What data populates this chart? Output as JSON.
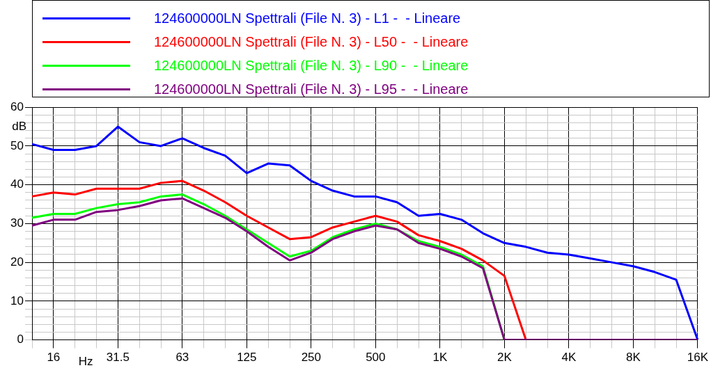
{
  "chart_data": {
    "type": "line",
    "xlabel": "Hz",
    "ylabel": "dB",
    "categories": [
      null,
      "16",
      null,
      null,
      "31.5",
      null,
      null,
      "63",
      null,
      null,
      "125",
      null,
      null,
      "250",
      null,
      null,
      "500",
      null,
      null,
      "1K",
      null,
      null,
      "2K",
      null,
      null,
      "4K",
      null,
      null,
      "8K",
      null,
      null,
      "16K"
    ],
    "series": [
      {
        "name": "124600000LN Spettrali (File N. 3) - L1 -  - Lineare",
        "color": "#0000ff",
        "values": [
          50.5,
          49,
          49,
          50,
          55,
          51,
          50,
          52,
          49.5,
          47.5,
          43,
          45.5,
          45,
          41,
          38.5,
          37,
          37,
          35.5,
          32,
          32.5,
          31,
          27.5,
          25,
          24,
          22.5,
          22,
          21,
          20,
          19,
          17.5,
          15.5,
          0
        ]
      },
      {
        "name": "124600000LN Spettrali (File N. 3) - L50 -  - Lineare",
        "color": "#ff0000",
        "values": [
          37,
          38,
          37.5,
          39,
          39,
          39,
          40.5,
          41,
          38.5,
          35.5,
          32,
          29,
          26,
          26.5,
          29,
          30.5,
          32,
          30.5,
          27,
          25.5,
          23.5,
          20.5,
          16.5,
          0,
          null,
          null,
          null,
          null,
          null,
          null,
          null,
          null
        ]
      },
      {
        "name": "124600000LN Spettrali (File N. 3) - L90 -  - Lineare",
        "color": "#00ff00",
        "values": [
          31.5,
          32.5,
          32.5,
          34,
          35,
          35.5,
          37,
          37.5,
          35,
          32,
          28.5,
          25,
          21.5,
          23,
          26.5,
          28.5,
          30,
          28.5,
          25.5,
          24,
          22,
          19,
          0,
          null,
          null,
          null,
          null,
          null,
          null,
          null,
          null,
          null
        ]
      },
      {
        "name": "124600000LN Spettrali (File N. 3) - L95 -  - Lineare",
        "color": "#800080",
        "values": [
          29.5,
          31,
          31,
          33,
          33.5,
          34.5,
          36,
          36.5,
          34,
          31.5,
          28,
          24,
          20.5,
          22.5,
          26,
          28,
          29.5,
          28.5,
          25,
          23.5,
          21.5,
          18.5,
          0,
          0,
          0,
          0,
          0,
          0,
          0,
          0,
          0,
          0
        ]
      }
    ],
    "ylim": [
      0,
      60
    ],
    "yticks": [
      0,
      {
        "value": 2,
        "label": null
      },
      {
        "value": 4,
        "label": null
      },
      {
        "value": 6,
        "label": null
      },
      {
        "value": 8,
        "label": null
      },
      10,
      {
        "value": 12,
        "label": null
      },
      {
        "value": 14,
        "label": null
      },
      {
        "value": 16,
        "label": null
      },
      {
        "value": 18,
        "label": null
      },
      20,
      {
        "value": 22,
        "label": null
      },
      {
        "value": 24,
        "label": null
      },
      {
        "value": 26,
        "label": null
      },
      {
        "value": 28,
        "label": null
      },
      30,
      {
        "value": 32,
        "label": null
      },
      {
        "value": 34,
        "label": null
      },
      {
        "value": 36,
        "label": null
      },
      {
        "value": 38,
        "label": null
      },
      40,
      {
        "value": 42,
        "label": null
      },
      {
        "value": 44,
        "label": null
      },
      {
        "value": 46,
        "label": null
      },
      {
        "value": 48,
        "label": null
      },
      50,
      {
        "value": 52,
        "label": null
      },
      {
        "value": 54,
        "label": null
      },
      {
        "value": 56,
        "label": null
      },
      {
        "value": 58,
        "label": null
      },
      60
    ],
    "grid": true,
    "legend": "top",
    "marker": "none",
    "line_style": "solid"
  }
}
